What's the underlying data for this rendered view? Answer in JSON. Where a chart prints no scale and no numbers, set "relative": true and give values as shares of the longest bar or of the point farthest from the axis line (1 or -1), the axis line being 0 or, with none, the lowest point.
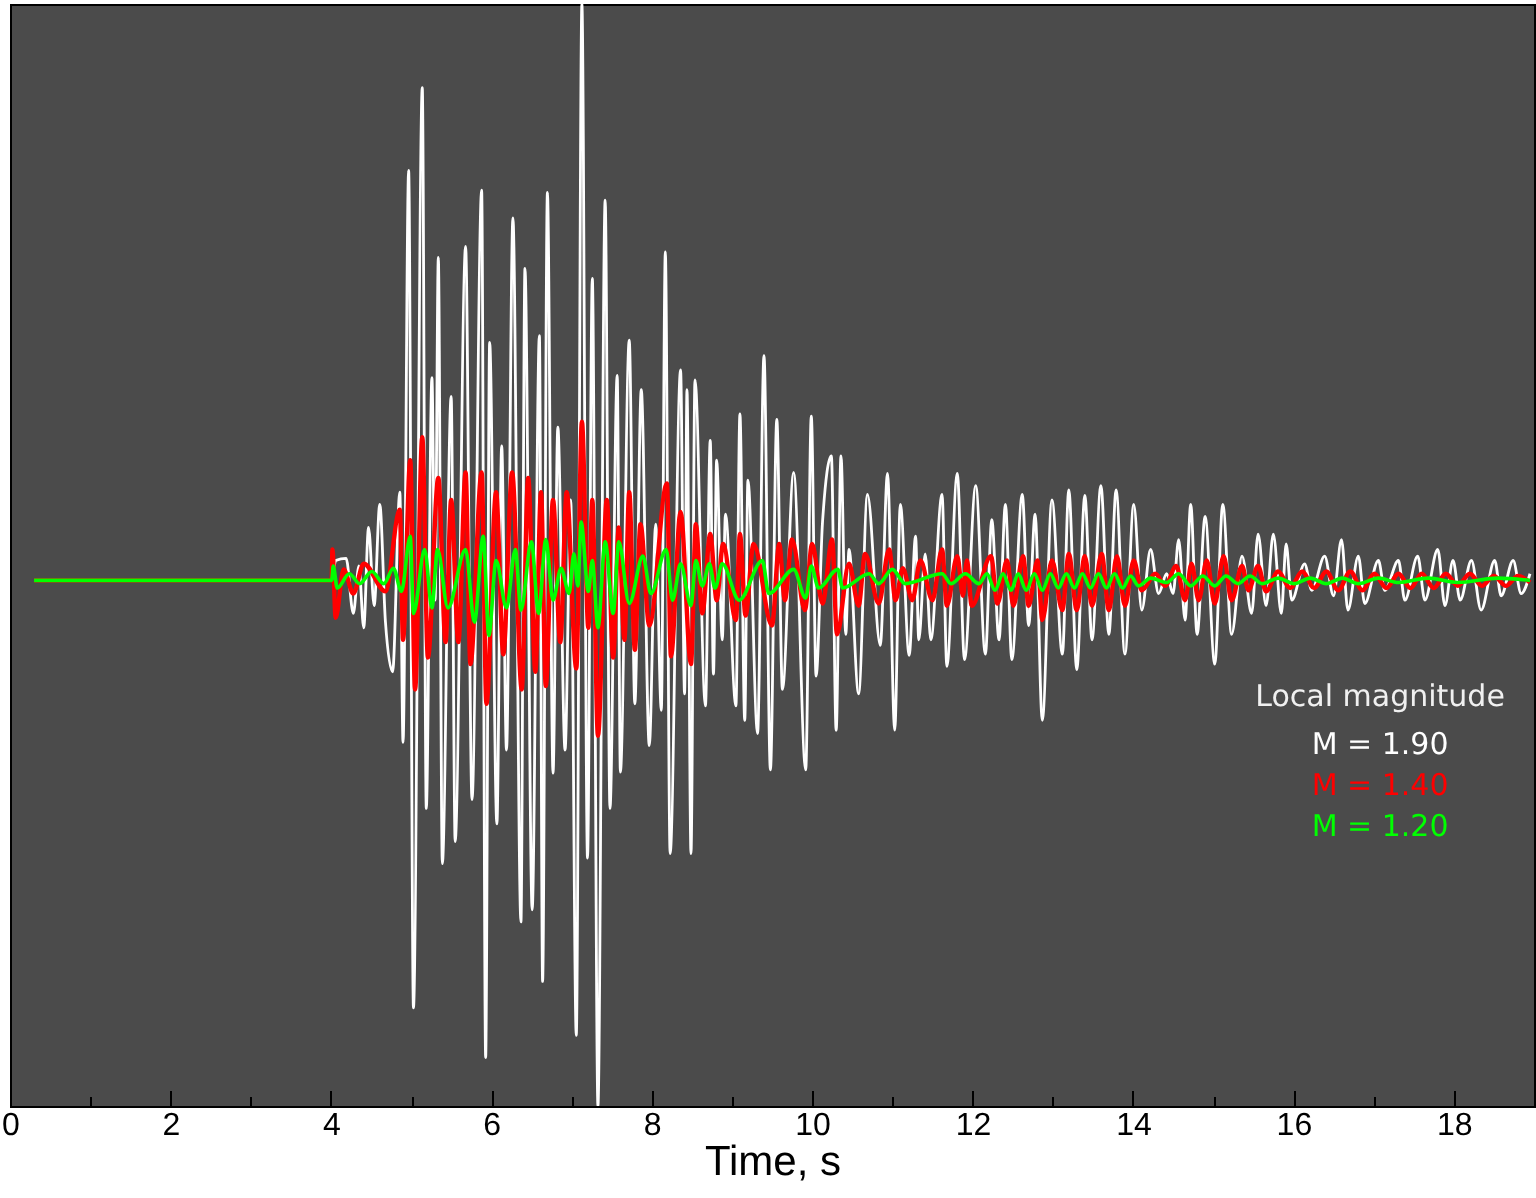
{
  "chart_data": {
    "type": "line",
    "xlabel": "Time, s",
    "legend_title": "Local magnitude",
    "legend": "right",
    "relative": true,
    "xlim": [
      0,
      19
    ],
    "xticks": [
      0,
      {
        "value": 1,
        "label": null
      },
      2,
      {
        "value": 3,
        "label": null
      },
      4,
      {
        "value": 5,
        "label": null
      },
      6,
      {
        "value": 7,
        "label": null
      },
      8,
      {
        "value": 9,
        "label": null
      },
      10,
      {
        "value": 11,
        "label": null
      },
      12,
      {
        "value": 13,
        "label": null
      },
      14,
      {
        "value": 15,
        "label": null
      },
      16,
      {
        "value": 17,
        "label": null
      },
      18
    ],
    "series": [
      {
        "name": "M = 1.90",
        "color": "#ffffff",
        "x": [
          0.3,
          4.01,
          4.06,
          4.19,
          4.28,
          4.35,
          4.41,
          4.47,
          4.54,
          4.61,
          4.68,
          4.77,
          4.86,
          4.9,
          4.97,
          5.03,
          5.14,
          5.19,
          5.26,
          5.3,
          5.34,
          5.39,
          5.5,
          5.55,
          5.68,
          5.76,
          5.88,
          5.93,
          5.98,
          6.07,
          6.13,
          6.19,
          6.27,
          6.37,
          6.42,
          6.51,
          6.6,
          6.64,
          6.7,
          6.77,
          6.83,
          6.92,
          6.99,
          7.06,
          7.13,
          7.2,
          7.26,
          7.33,
          7.42,
          7.48,
          7.57,
          7.61,
          7.72,
          7.79,
          7.87,
          7.97,
          8.05,
          8.12,
          8.17,
          8.23,
          8.36,
          8.41,
          8.44,
          8.49,
          8.54,
          8.67,
          8.73,
          8.77,
          8.81,
          8.88,
          8.92,
          9.05,
          9.1,
          9.16,
          9.2,
          9.32,
          9.4,
          9.48,
          9.56,
          9.63,
          9.77,
          9.92,
          9.99,
          10.05,
          10.13,
          10.24,
          10.3,
          10.36,
          10.42,
          10.46,
          10.58,
          10.69,
          10.85,
          10.94,
          11.03,
          11.1,
          11.21,
          11.29,
          11.33,
          11.41,
          11.48,
          11.62,
          11.68,
          11.81,
          11.9,
          12.04,
          12.16,
          12.24,
          12.33,
          12.41,
          12.49,
          12.62,
          12.7,
          12.78,
          12.87,
          12.99,
          13.12,
          13.2,
          13.3,
          13.4,
          13.49,
          13.6,
          13.7,
          13.79,
          13.9,
          14.01,
          14.11,
          14.22,
          14.32,
          14.42,
          14.5,
          14.57,
          14.65,
          14.72,
          14.8,
          14.9,
          15.02,
          15.12,
          15.23,
          15.36,
          15.48,
          15.56,
          15.66,
          15.75,
          15.85,
          15.91,
          15.98,
          16.14,
          16.23,
          16.39,
          16.5,
          16.6,
          16.68,
          16.81,
          16.89,
          17.06,
          17.14,
          17.31,
          17.39,
          17.55,
          17.64,
          17.8,
          17.89,
          17.99,
          18.08,
          18.22,
          18.34,
          18.51,
          18.59,
          18.74,
          18.84,
          18.95
        ],
        "values": [
          0.477,
          0.477,
          0.495,
          0.497,
          0.447,
          0.49,
          0.434,
          0.525,
          0.454,
          0.546,
          0.44,
          0.394,
          0.557,
          0.33,
          0.849,
          0.089,
          0.924,
          0.27,
          0.661,
          0.459,
          0.77,
          0.22,
          0.644,
          0.24,
          0.78,
          0.278,
          0.831,
          0.044,
          0.693,
          0.256,
          0.599,
          0.323,
          0.806,
          0.167,
          0.76,
          0.178,
          0.699,
          0.113,
          0.829,
          0.302,
          0.616,
          0.323,
          0.55,
          0.064,
          1.0,
          0.225,
          0.751,
          0.0,
          0.822,
          0.27,
          0.663,
          0.303,
          0.695,
          0.365,
          0.65,
          0.327,
          0.528,
          0.359,
          0.775,
          0.229,
          0.668,
          0.374,
          0.65,
          0.229,
          0.659,
          0.363,
          0.604,
          0.392,
          0.586,
          0.423,
          0.537,
          0.363,
          0.628,
          0.35,
          0.568,
          0.338,
          0.681,
          0.305,
          0.623,
          0.378,
          0.575,
          0.305,
          0.626,
          0.39,
          0.53,
          0.59,
          0.341,
          0.59,
          0.428,
          0.505,
          0.374,
          0.555,
          0.418,
          0.574,
          0.341,
          0.546,
          0.409,
          0.517,
          0.423,
          0.501,
          0.423,
          0.555,
          0.399,
          0.574,
          0.405,
          0.563,
          0.41,
          0.532,
          0.423,
          0.546,
          0.405,
          0.555,
          0.436,
          0.537,
          0.35,
          0.55,
          0.41,
          0.559,
          0.396,
          0.554,
          0.423,
          0.563,
          0.428,
          0.559,
          0.41,
          0.546,
          0.45,
          0.505,
          0.465,
          0.483,
          0.465,
          0.514,
          0.441,
          0.546,
          0.428,
          0.535,
          0.401,
          0.546,
          0.428,
          0.499,
          0.447,
          0.519,
          0.454,
          0.519,
          0.447,
          0.51,
          0.459,
          0.492,
          0.468,
          0.499,
          0.463,
          0.514,
          0.45,
          0.499,
          0.456,
          0.495,
          0.468,
          0.495,
          0.459,
          0.499,
          0.459,
          0.505,
          0.454,
          0.495,
          0.459,
          0.495,
          0.45,
          0.495,
          0.463,
          0.495,
          0.465,
          0.483
        ]
      },
      {
        "name": "M = 1.40",
        "color": "#ff0000",
        "x": [
          0.3,
          4.01,
          4.02,
          4.06,
          4.16,
          4.28,
          4.41,
          4.68,
          4.86,
          4.9,
          4.99,
          5.05,
          5.14,
          5.21,
          5.34,
          5.43,
          5.5,
          5.59,
          5.68,
          5.74,
          5.88,
          5.94,
          6.06,
          6.15,
          6.26,
          6.38,
          6.46,
          6.55,
          6.62,
          6.68,
          6.77,
          6.86,
          6.94,
          7.06,
          7.13,
          7.21,
          7.26,
          7.33,
          7.44,
          7.52,
          7.59,
          7.66,
          7.72,
          7.79,
          7.86,
          7.97,
          8.19,
          8.24,
          8.36,
          8.49,
          8.55,
          8.63,
          8.73,
          8.81,
          8.89,
          9.05,
          9.1,
          9.17,
          9.27,
          9.5,
          9.59,
          9.66,
          9.75,
          9.91,
          10.0,
          10.13,
          10.25,
          10.31,
          10.46,
          10.58,
          10.66,
          10.83,
          10.96,
          11.04,
          11.13,
          11.25,
          11.35,
          11.5,
          11.62,
          11.68,
          11.81,
          11.88,
          11.93,
          11.99,
          12.23,
          12.31,
          12.43,
          12.51,
          12.63,
          12.7,
          12.81,
          12.87,
          12.99,
          13.12,
          13.2,
          13.3,
          13.4,
          13.49,
          13.61,
          13.7,
          13.8,
          13.9,
          14.01,
          14.11,
          14.28,
          14.4,
          14.54,
          14.65,
          14.73,
          14.82,
          14.92,
          15.02,
          15.13,
          15.23,
          15.36,
          15.44,
          15.56,
          15.66,
          15.81,
          15.96,
          16.11,
          16.26,
          16.41,
          16.56,
          16.71,
          16.86,
          17.01,
          17.16,
          17.31,
          17.46,
          17.6,
          17.75,
          17.9,
          18.05,
          18.2,
          18.35,
          18.5,
          18.65,
          18.8,
          18.95
        ],
        "values": [
          0.477,
          0.477,
          0.505,
          0.443,
          0.487,
          0.465,
          0.492,
          0.467,
          0.541,
          0.423,
          0.586,
          0.378,
          0.607,
          0.407,
          0.57,
          0.421,
          0.55,
          0.421,
          0.575,
          0.401,
          0.575,
          0.365,
          0.557,
          0.41,
          0.575,
          0.378,
          0.57,
          0.394,
          0.557,
          0.381,
          0.55,
          0.421,
          0.557,
          0.397,
          0.621,
          0.434,
          0.55,
          0.336,
          0.55,
          0.407,
          0.525,
          0.423,
          0.557,
          0.414,
          0.528,
          0.436,
          0.565,
          0.408,
          0.539,
          0.401,
          0.528,
          0.447,
          0.519,
          0.459,
          0.51,
          0.441,
          0.519,
          0.445,
          0.51,
          0.436,
          0.51,
          0.459,
          0.514,
          0.45,
          0.51,
          0.456,
          0.514,
          0.428,
          0.492,
          0.454,
          0.501,
          0.456,
          0.505,
          0.459,
          0.488,
          0.459,
          0.495,
          0.459,
          0.505,
          0.454,
          0.499,
          0.463,
          0.495,
          0.454,
          0.499,
          0.456,
          0.495,
          0.454,
          0.499,
          0.454,
          0.495,
          0.441,
          0.495,
          0.45,
          0.501,
          0.45,
          0.499,
          0.454,
          0.501,
          0.45,
          0.499,
          0.454,
          0.495,
          0.468,
          0.483,
          0.472,
          0.49,
          0.459,
          0.492,
          0.459,
          0.495,
          0.456,
          0.499,
          0.459,
          0.49,
          0.468,
          0.49,
          0.467,
          0.485,
          0.47,
          0.485,
          0.47,
          0.485,
          0.468,
          0.485,
          0.468,
          0.483,
          0.47,
          0.483,
          0.47,
          0.483,
          0.47,
          0.483,
          0.472,
          0.483,
          0.472,
          0.481,
          0.472,
          0.481,
          0.475
        ]
      },
      {
        "name": "M = 1.20",
        "color": "#00ff00",
        "x": [
          0.3,
          4.01,
          4.03,
          4.08,
          4.23,
          4.36,
          4.51,
          4.66,
          4.78,
          4.88,
          4.99,
          5.03,
          5.17,
          5.26,
          5.33,
          5.46,
          5.68,
          5.79,
          5.9,
          5.97,
          6.06,
          6.19,
          6.3,
          6.37,
          6.5,
          6.59,
          6.68,
          6.77,
          6.87,
          6.97,
          7.03,
          7.08,
          7.12,
          7.21,
          7.26,
          7.33,
          7.42,
          7.52,
          7.59,
          7.72,
          7.89,
          7.99,
          8.18,
          8.26,
          8.36,
          8.49,
          8.55,
          8.63,
          8.72,
          8.79,
          8.88,
          9.09,
          9.38,
          9.46,
          9.77,
          9.92,
          9.99,
          10.08,
          10.32,
          10.38,
          10.71,
          10.83,
          11.0,
          11.16,
          11.62,
          11.73,
          11.91,
          12.08,
          12.18,
          12.28,
          12.38,
          12.48,
          12.57,
          12.67,
          12.77,
          12.87,
          12.97,
          13.07,
          13.17,
          13.27,
          13.37,
          13.47,
          13.57,
          13.67,
          13.77,
          13.87,
          13.97,
          14.07,
          14.22,
          14.42,
          14.57,
          14.72,
          14.87,
          15.02,
          15.16,
          15.31,
          15.46,
          15.61,
          15.81,
          16.01,
          16.21,
          16.41,
          16.61,
          16.81,
          17.06,
          17.31,
          17.68,
          18.05,
          18.55,
          18.95
        ],
        "values": [
          0.477,
          0.477,
          0.49,
          0.47,
          0.483,
          0.474,
          0.485,
          0.474,
          0.488,
          0.467,
          0.517,
          0.447,
          0.505,
          0.452,
          0.505,
          0.452,
          0.505,
          0.439,
          0.517,
          0.427,
          0.495,
          0.452,
          0.505,
          0.45,
          0.512,
          0.447,
          0.514,
          0.459,
          0.488,
          0.465,
          0.501,
          0.472,
          0.53,
          0.467,
          0.495,
          0.434,
          0.512,
          0.447,
          0.512,
          0.456,
          0.499,
          0.465,
          0.505,
          0.459,
          0.492,
          0.454,
          0.495,
          0.472,
          0.492,
          0.47,
          0.492,
          0.459,
          0.495,
          0.465,
          0.487,
          0.461,
          0.49,
          0.47,
          0.487,
          0.47,
          0.483,
          0.474,
          0.487,
          0.474,
          0.483,
          0.474,
          0.483,
          0.474,
          0.483,
          0.468,
          0.483,
          0.468,
          0.483,
          0.468,
          0.483,
          0.468,
          0.483,
          0.47,
          0.483,
          0.47,
          0.483,
          0.47,
          0.483,
          0.47,
          0.483,
          0.47,
          0.481,
          0.472,
          0.479,
          0.475,
          0.483,
          0.472,
          0.481,
          0.472,
          0.481,
          0.474,
          0.481,
          0.474,
          0.479,
          0.474,
          0.479,
          0.474,
          0.479,
          0.474,
          0.479,
          0.475,
          0.479,
          0.475,
          0.479,
          0.477
        ]
      }
    ]
  }
}
